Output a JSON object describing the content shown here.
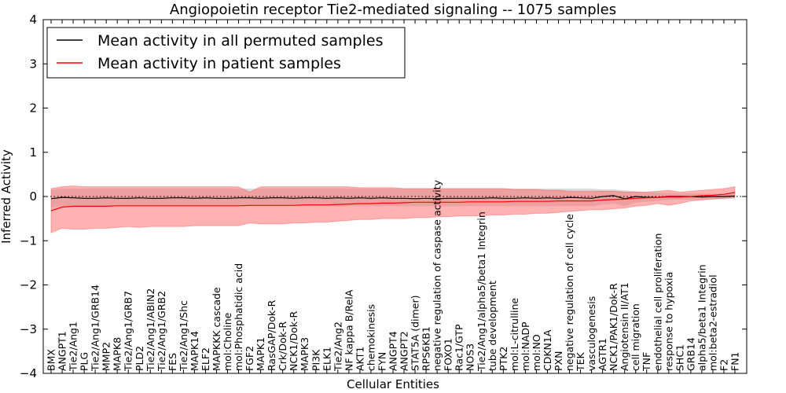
{
  "chart_data": {
    "type": "line",
    "title": "Angiopoietin receptor Tie2-mediated signaling -- 1075 samples",
    "xlabel": "Cellular Entities",
    "ylabel": "Inferred Activity",
    "ylim": [
      -4,
      4
    ],
    "yticks": [
      -4,
      -3,
      -2,
      -1,
      0,
      1,
      2,
      3,
      4
    ],
    "ytick_labels": [
      "−4",
      "−3",
      "−2",
      "−1",
      "0",
      "1",
      "2",
      "3",
      "4"
    ],
    "grid": false,
    "legend_position": "top-left",
    "categories": [
      "BMX",
      "ANGPT1",
      "Tie2/Ang1",
      "PLG",
      "Tie2/Ang1/GRB14",
      "MMP2",
      "MAPK8",
      "Tie2/Ang1/GRB7",
      "PLD2",
      "Tie2/Ang1/ABIN2",
      "Tie2/Ang1/GRB2",
      "FES",
      "Tie2/Ang1/Shc",
      "MAPK14",
      "ELF2",
      "MAPKKK cascade",
      "mol:Choline",
      "mol:Phosphatidic acid",
      "FGF2",
      "MAPK1",
      "RasGAP/Dok-R",
      "Crk/Dok-R",
      "NCK1/Dok-R",
      "MAPK3",
      "PI3K",
      "ELK1",
      "Tie2/Ang2",
      "NF kappa B/RelA",
      "AKT1",
      "chemokinesis",
      "FYN",
      "ANGPT4",
      "ANGPT2",
      "STAT5A (dimer)",
      "RPS6KB1",
      "negative regulation of caspase activity",
      "FOXO1",
      "Rac1/GTP",
      "NOS3",
      "Tie2/Ang1/alpha5/beta1 Integrin",
      "tube development",
      "PTK2",
      "mol:L-citrulline",
      "mol:NADP",
      "mol:NO",
      "CDKN1A",
      "PXN",
      "negative regulation of cell cycle",
      "TEK",
      "vasculogenesis",
      "AGTR1",
      "NCK1/PAK1/Dok-R",
      "Angiotensin II/AT1",
      "cell migration",
      "TNF",
      "endothelial cell proliferation",
      "response to hypoxia",
      "SHC1",
      "GRB14",
      "alpha5/beta1 Integrin",
      "mol:beta2-estradiol",
      "F2",
      "FN1"
    ],
    "series": [
      {
        "name": "Mean activity in all permuted samples",
        "color": "#000000",
        "band_color": "#b0b0b0",
        "mean": [
          -0.05,
          -0.02,
          -0.03,
          -0.04,
          -0.04,
          -0.03,
          -0.04,
          -0.04,
          -0.03,
          -0.04,
          -0.04,
          -0.03,
          -0.03,
          -0.04,
          -0.03,
          -0.04,
          -0.04,
          -0.03,
          -0.03,
          -0.04,
          -0.03,
          -0.03,
          -0.04,
          -0.03,
          -0.03,
          -0.04,
          -0.03,
          -0.04,
          -0.03,
          -0.04,
          -0.03,
          -0.04,
          -0.04,
          -0.05,
          -0.04,
          -0.05,
          -0.04,
          -0.04,
          -0.04,
          -0.04,
          -0.03,
          -0.04,
          -0.04,
          -0.03,
          -0.04,
          -0.03,
          -0.04,
          -0.02,
          -0.03,
          -0.04,
          0.0,
          0.02,
          -0.05,
          0.0,
          -0.02,
          -0.02,
          0.0,
          0.0,
          0.0,
          -0.01,
          0.0,
          0.0,
          0.01
        ],
        "lower": [
          -0.25,
          -0.22,
          -0.22,
          -0.22,
          -0.22,
          -0.22,
          -0.22,
          -0.22,
          -0.22,
          -0.22,
          -0.22,
          -0.22,
          -0.22,
          -0.22,
          -0.22,
          -0.22,
          -0.22,
          -0.22,
          -0.22,
          -0.22,
          -0.22,
          -0.22,
          -0.22,
          -0.22,
          -0.22,
          -0.22,
          -0.22,
          -0.22,
          -0.22,
          -0.22,
          -0.22,
          -0.22,
          -0.22,
          -0.22,
          -0.22,
          -0.22,
          -0.22,
          -0.22,
          -0.22,
          -0.22,
          -0.22,
          -0.22,
          -0.22,
          -0.22,
          -0.22,
          -0.22,
          -0.22,
          -0.22,
          -0.22,
          -0.22,
          -0.18,
          -0.16,
          -0.22,
          -0.14,
          -0.12,
          -0.1,
          -0.08,
          -0.07,
          -0.07,
          -0.07,
          -0.06,
          -0.06,
          -0.05
        ],
        "upper": [
          0.15,
          0.18,
          0.18,
          0.18,
          0.18,
          0.18,
          0.18,
          0.18,
          0.18,
          0.18,
          0.18,
          0.18,
          0.18,
          0.18,
          0.18,
          0.18,
          0.18,
          0.18,
          0.18,
          0.18,
          0.18,
          0.18,
          0.18,
          0.18,
          0.18,
          0.18,
          0.18,
          0.18,
          0.18,
          0.18,
          0.18,
          0.18,
          0.18,
          0.18,
          0.18,
          0.18,
          0.18,
          0.18,
          0.18,
          0.18,
          0.18,
          0.18,
          0.18,
          0.18,
          0.18,
          0.18,
          0.18,
          0.18,
          0.18,
          0.18,
          0.16,
          0.16,
          0.14,
          0.12,
          0.1,
          0.09,
          0.08,
          0.07,
          0.07,
          0.07,
          0.06,
          0.06,
          0.06
        ]
      },
      {
        "name": "Mean activity in patient samples",
        "color": "#ff0000",
        "band_color": "#ff6666",
        "mean": [
          -0.32,
          -0.24,
          -0.22,
          -0.22,
          -0.22,
          -0.22,
          -0.21,
          -0.21,
          -0.21,
          -0.21,
          -0.21,
          -0.21,
          -0.21,
          -0.21,
          -0.21,
          -0.21,
          -0.21,
          -0.21,
          -0.2,
          -0.2,
          -0.2,
          -0.2,
          -0.2,
          -0.19,
          -0.19,
          -0.19,
          -0.18,
          -0.17,
          -0.16,
          -0.16,
          -0.15,
          -0.15,
          -0.14,
          -0.13,
          -0.13,
          -0.13,
          -0.13,
          -0.13,
          -0.12,
          -0.12,
          -0.12,
          -0.12,
          -0.11,
          -0.11,
          -0.11,
          -0.11,
          -0.1,
          -0.1,
          -0.1,
          -0.1,
          -0.08,
          -0.07,
          -0.06,
          -0.04,
          -0.03,
          -0.02,
          -0.01,
          -0.01,
          0.0,
          0.02,
          0.03,
          0.05,
          0.09
        ],
        "lower": [
          -0.82,
          -0.72,
          -0.74,
          -0.74,
          -0.72,
          -0.72,
          -0.7,
          -0.68,
          -0.7,
          -0.68,
          -0.68,
          -0.68,
          -0.68,
          -0.66,
          -0.66,
          -0.66,
          -0.66,
          -0.66,
          -0.6,
          -0.62,
          -0.62,
          -0.62,
          -0.6,
          -0.6,
          -0.58,
          -0.58,
          -0.56,
          -0.54,
          -0.52,
          -0.52,
          -0.5,
          -0.5,
          -0.5,
          -0.48,
          -0.48,
          -0.46,
          -0.46,
          -0.44,
          -0.44,
          -0.44,
          -0.42,
          -0.42,
          -0.4,
          -0.4,
          -0.38,
          -0.38,
          -0.36,
          -0.34,
          -0.32,
          -0.3,
          -0.3,
          -0.28,
          -0.26,
          -0.22,
          -0.2,
          -0.16,
          -0.2,
          -0.16,
          -0.1,
          -0.08,
          -0.06,
          -0.04,
          -0.02
        ],
        "upper": [
          0.18,
          0.22,
          0.24,
          0.22,
          0.22,
          0.22,
          0.22,
          0.22,
          0.22,
          0.22,
          0.22,
          0.22,
          0.22,
          0.22,
          0.22,
          0.22,
          0.22,
          0.22,
          0.1,
          0.22,
          0.22,
          0.22,
          0.22,
          0.22,
          0.22,
          0.22,
          0.22,
          0.22,
          0.2,
          0.2,
          0.2,
          0.2,
          0.18,
          0.18,
          0.18,
          0.18,
          0.18,
          0.18,
          0.18,
          0.18,
          0.18,
          0.18,
          0.16,
          0.16,
          0.16,
          0.14,
          0.14,
          0.12,
          0.12,
          0.12,
          0.12,
          0.12,
          0.1,
          0.1,
          0.1,
          0.12,
          0.14,
          0.1,
          0.12,
          0.14,
          0.16,
          0.18,
          0.22
        ]
      }
    ],
    "reference_line": {
      "y": 0,
      "style": "dotted"
    }
  }
}
